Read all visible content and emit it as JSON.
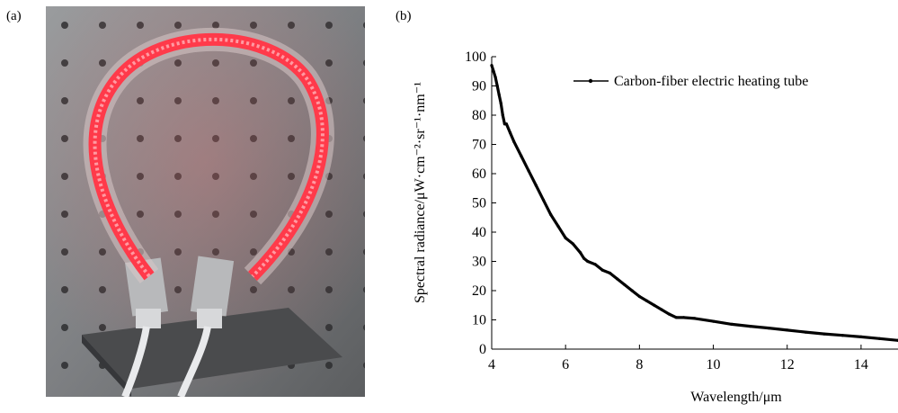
{
  "panels": {
    "a": "(a)",
    "b": "(b)"
  },
  "photo": {
    "subject": "carbon-fiber-heating-tube-photo"
  },
  "chart_data": {
    "type": "line",
    "xlabel": "Wavelength/μm",
    "ylabel": "Spectral radiance/μW·cm⁻²·sr⁻¹·nm⁻¹",
    "xlim": [
      4,
      15
    ],
    "ylim": [
      0,
      100
    ],
    "xticks": [
      4,
      6,
      8,
      10,
      12,
      14
    ],
    "yticks": [
      0,
      10,
      20,
      30,
      40,
      50,
      60,
      70,
      80,
      90,
      100
    ],
    "grid": false,
    "legend_position": "top-right",
    "series": [
      {
        "name": "Carbon-fiber electric heating tube",
        "color": "#000000",
        "x": [
          4.0,
          4.05,
          4.1,
          4.15,
          4.2,
          4.25,
          4.3,
          4.35,
          4.4,
          4.5,
          4.6,
          4.8,
          5.0,
          5.2,
          5.4,
          5.6,
          5.8,
          6.0,
          6.2,
          6.4,
          6.5,
          6.6,
          6.8,
          7.0,
          7.2,
          7.4,
          7.6,
          7.8,
          8.0,
          8.2,
          8.4,
          8.6,
          8.8,
          9.0,
          9.2,
          9.5,
          10.0,
          10.5,
          11.0,
          11.5,
          12.0,
          12.5,
          13.0,
          13.5,
          14.0,
          14.5,
          15.0
        ],
        "y": [
          97,
          95,
          93,
          90,
          87,
          84,
          80,
          77,
          77,
          74,
          71,
          66,
          61,
          56,
          51,
          46,
          42,
          38,
          36,
          33,
          31,
          30,
          29,
          27,
          26,
          24,
          22,
          20,
          18,
          16.5,
          15,
          13.5,
          12,
          10.8,
          10.8,
          10.5,
          9.5,
          8.5,
          7.8,
          7.2,
          6.5,
          5.8,
          5.2,
          4.7,
          4.2,
          3.6,
          3.0
        ]
      }
    ]
  }
}
